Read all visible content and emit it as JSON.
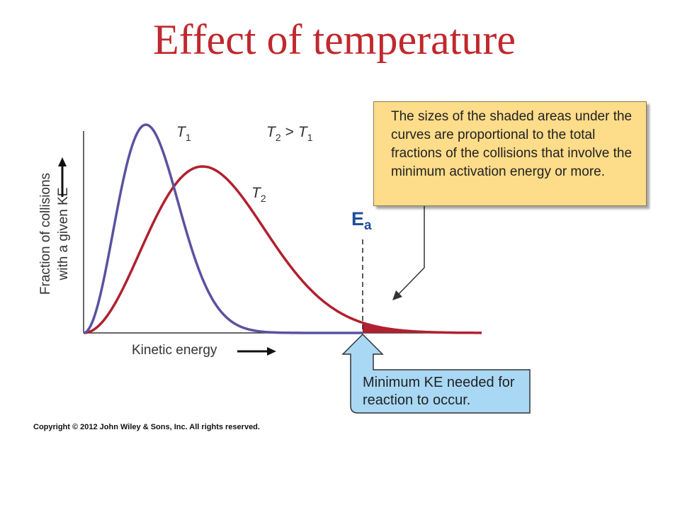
{
  "title": "Effect of temperature",
  "ylabel_line1": "Fraction of collisions",
  "ylabel_line2": "with a given KE",
  "xlabel": "Kinetic energy",
  "curve_labels": {
    "t1": {
      "base": "T",
      "sub": "1"
    },
    "t2": {
      "base": "T",
      "sub": "2"
    }
  },
  "relation": {
    "a": "T",
    "a_sub": "2",
    "op": ">",
    "b": "T",
    "b_sub": "1"
  },
  "ea_label": {
    "base": "E",
    "sub": "a"
  },
  "callout_top": "The sizes of the shaded areas under the curves are proportional to the total fractions of the collisions that involve the minimum activation energy or more.",
  "callout_bottom": "Minimum KE needed for reaction to occur.",
  "copyright": "Copyright © 2012 John Wiley & Sons, Inc. All rights reserved.",
  "colors": {
    "title": "#c0282d",
    "t1_curve": "#5a52a0",
    "t2_curve": "#b0202e",
    "callout_top_bg": "#fddc8a",
    "callout_bottom_bg": "#a9d8f5",
    "ea_label": "#1f4e9c"
  }
}
